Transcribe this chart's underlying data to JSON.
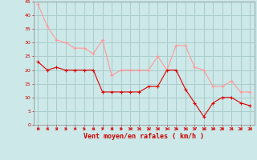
{
  "hours": [
    0,
    1,
    2,
    3,
    4,
    5,
    6,
    7,
    8,
    9,
    10,
    11,
    12,
    13,
    14,
    15,
    16,
    17,
    18,
    19,
    20,
    21,
    22,
    23
  ],
  "wind_avg": [
    23,
    20,
    21,
    20,
    20,
    20,
    20,
    12,
    12,
    12,
    12,
    12,
    14,
    14,
    20,
    20,
    13,
    8,
    3,
    8,
    10,
    10,
    8,
    7
  ],
  "wind_gust": [
    44,
    36,
    31,
    30,
    28,
    28,
    26,
    31,
    18,
    20,
    20,
    20,
    20,
    25,
    20,
    29,
    29,
    21,
    20,
    14,
    14,
    16,
    12,
    12
  ],
  "bg_color": "#cce8e8",
  "grid_color": "#aacccc",
  "line_avg_color": "#dd0000",
  "line_gust_color": "#ff9999",
  "xlabel": "Vent moyen/en rafales ( km/h )",
  "xlabel_color": "#cc0000",
  "tick_color": "#cc0000",
  "spine_color": "#888888",
  "ylim": [
    0,
    45
  ],
  "yticks": [
    0,
    5,
    10,
    15,
    20,
    25,
    30,
    35,
    40,
    45
  ],
  "figwidth": 3.2,
  "figheight": 2.0,
  "dpi": 100
}
